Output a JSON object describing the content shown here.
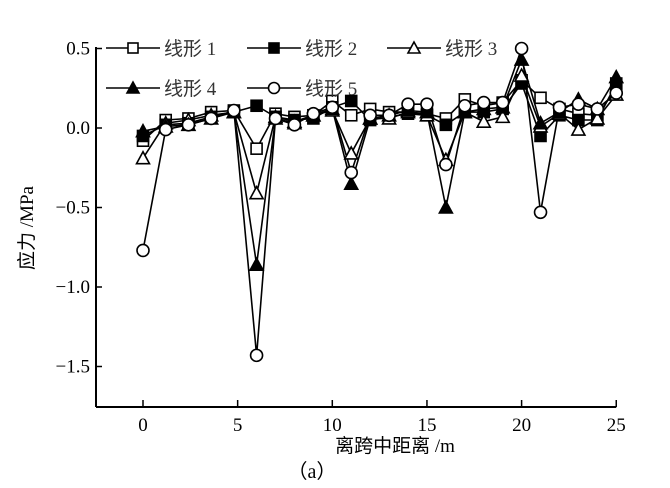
{
  "chart_data": {
    "type": "line",
    "title": "",
    "caption": "（a）",
    "xlabel": "离跨中距离 /m",
    "ylabel": "应力 /MPa",
    "xlim": [
      -2.5,
      25
    ],
    "ylim": [
      -1.75,
      0.55
    ],
    "xticks": [
      0,
      5,
      10,
      15,
      20,
      25
    ],
    "xtick_labels": [
      "0",
      "5",
      "10",
      "15",
      "20",
      "25"
    ],
    "yticks": [
      0.5,
      0.0,
      -0.5,
      -1.0,
      -1.5
    ],
    "ytick_labels": [
      "0.5",
      "0.0",
      "−0.5",
      "−1.0",
      "−1.5"
    ],
    "grid": false,
    "legend_position": "top-left inside, two rows",
    "x": [
      0,
      1.2,
      2.4,
      3.6,
      4.8,
      6,
      7,
      8,
      9,
      10,
      11,
      12,
      13,
      14,
      15,
      16,
      17,
      18,
      19,
      20,
      21,
      22,
      23,
      24,
      25
    ],
    "series": [
      {
        "name": "线形 1",
        "marker": "open-square",
        "values": [
          -0.08,
          0.05,
          0.06,
          0.1,
          0.11,
          -0.13,
          0.09,
          0.07,
          0.08,
          0.17,
          0.08,
          0.12,
          0.1,
          0.1,
          0.09,
          0.06,
          0.18,
          0.14,
          0.16,
          0.3,
          0.19,
          0.12,
          0.09,
          0.08,
          0.25
        ]
      },
      {
        "name": "线形 2",
        "marker": "filled-square",
        "values": [
          -0.05,
          0.02,
          0.03,
          0.07,
          0.1,
          0.14,
          0.07,
          0.05,
          0.06,
          0.13,
          0.17,
          0.05,
          0.07,
          0.09,
          0.08,
          0.02,
          0.1,
          0.1,
          0.12,
          0.28,
          -0.05,
          0.08,
          0.05,
          0.05,
          0.28
        ]
      },
      {
        "name": "线形 3",
        "marker": "open-triangle",
        "values": [
          -0.19,
          0.03,
          0.05,
          0.08,
          0.1,
          -0.41,
          0.07,
          0.04,
          0.08,
          0.11,
          -0.16,
          0.06,
          0.06,
          0.1,
          0.08,
          -0.2,
          0.1,
          0.04,
          0.07,
          0.33,
          0.01,
          0.09,
          -0.01,
          0.06,
          0.21
        ]
      },
      {
        "name": "线形 4",
        "marker": "filled-triangle",
        "values": [
          -0.02,
          0.01,
          0.02,
          0.06,
          0.1,
          -0.86,
          0.06,
          0.03,
          0.08,
          0.12,
          -0.35,
          0.06,
          0.08,
          0.11,
          0.1,
          -0.5,
          0.1,
          0.12,
          0.13,
          0.43,
          0.03,
          0.1,
          0.18,
          0.12,
          0.32
        ]
      },
      {
        "name": "线形 5",
        "marker": "open-circle",
        "values": [
          -0.77,
          -0.01,
          0.02,
          0.06,
          0.11,
          -1.43,
          0.06,
          0.02,
          0.09,
          0.13,
          -0.28,
          0.08,
          0.08,
          0.15,
          0.15,
          -0.23,
          0.14,
          0.16,
          0.16,
          0.5,
          -0.53,
          0.13,
          0.15,
          0.12,
          0.22
        ]
      }
    ]
  },
  "legend": {
    "items": [
      {
        "label": "线形 1",
        "marker": "open-square"
      },
      {
        "label": "线形 2",
        "marker": "filled-square"
      },
      {
        "label": "线形 3",
        "marker": "open-triangle"
      },
      {
        "label": "线形 4",
        "marker": "filled-triangle"
      },
      {
        "label": "线形 5",
        "marker": "open-circle"
      }
    ]
  },
  "colors": {
    "line": "#000000",
    "axis": "#000000",
    "legend_text": "#333333",
    "background": "#ffffff"
  }
}
